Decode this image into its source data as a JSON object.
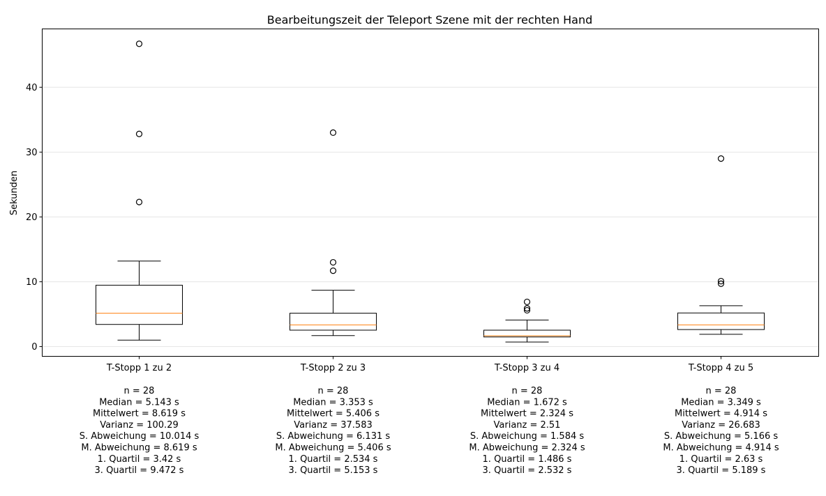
{
  "chart_data": {
    "type": "boxplot",
    "title": "Bearbeitungszeit der Teleport Szene mit der rechten Hand",
    "xlabel": "",
    "ylabel": "Sekunden",
    "ylim": [
      -1.5,
      49
    ],
    "yticks": [
      0,
      10,
      20,
      30,
      40
    ],
    "grid": "horizontal",
    "colors": {
      "box": "#000000",
      "median": "#ff7f0e",
      "grid": "#e6e6e6"
    },
    "categories": [
      "T-Stopp 1 zu 2",
      "T-Stopp 2 zu 3",
      "T-Stopp 3 zu 4",
      "T-Stopp 4 zu 5"
    ],
    "boxes": [
      {
        "q1": 3.42,
        "median": 5.143,
        "q3": 9.472,
        "whisker_low": 1.0,
        "whisker_high": 13.2,
        "outliers": [
          22.3,
          32.8,
          46.7
        ]
      },
      {
        "q1": 2.534,
        "median": 3.353,
        "q3": 5.153,
        "whisker_low": 1.7,
        "whisker_high": 8.7,
        "outliers": [
          11.7,
          13.0,
          33.0
        ]
      },
      {
        "q1": 1.486,
        "median": 1.672,
        "q3": 2.532,
        "whisker_low": 0.7,
        "whisker_high": 4.1,
        "outliers": [
          5.6,
          5.9,
          6.9
        ]
      },
      {
        "q1": 2.63,
        "median": 3.349,
        "q3": 5.189,
        "whisker_low": 1.9,
        "whisker_high": 6.3,
        "outliers": [
          9.7,
          10.1,
          29.0
        ]
      }
    ],
    "stats": [
      [
        "n = 28",
        "Median = 5.143 s",
        "Mittelwert = 8.619 s",
        "Varianz = 100.29",
        "S. Abweichung = 10.014 s",
        "M. Abweichung = 8.619 s",
        "1. Quartil = 3.42 s",
        "3. Quartil = 9.472 s"
      ],
      [
        "n = 28",
        "Median = 3.353 s",
        "Mittelwert = 5.406 s",
        "Varianz = 37.583",
        "S. Abweichung = 6.131 s",
        "M. Abweichung = 5.406 s",
        "1. Quartil = 2.534 s",
        "3. Quartil = 5.153 s"
      ],
      [
        "n = 28",
        "Median = 1.672 s",
        "Mittelwert = 2.324 s",
        "Varianz = 2.51",
        "S. Abweichung = 1.584 s",
        "M. Abweichung = 2.324 s",
        "1. Quartil = 1.486 s",
        "3. Quartil = 2.532 s"
      ],
      [
        "n = 28",
        "Median = 3.349 s",
        "Mittelwert = 4.914 s",
        "Varianz = 26.683",
        "S. Abweichung = 5.166 s",
        "M. Abweichung = 4.914 s",
        "1. Quartil = 2.63 s",
        "3. Quartil = 5.189 s"
      ]
    ]
  }
}
